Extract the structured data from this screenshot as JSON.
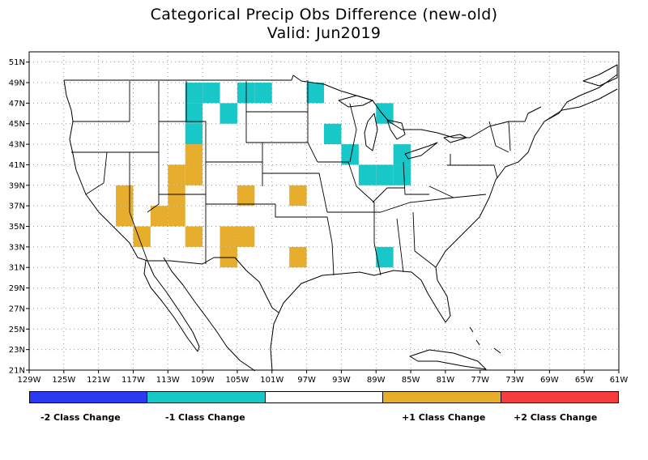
{
  "title": {
    "line1": "Categorical Precip Obs Difference (new-old)",
    "line2": "Valid: Jun2019"
  },
  "lat_ticks": [
    "51N",
    "49N",
    "47N",
    "45N",
    "43N",
    "41N",
    "39N",
    "37N",
    "35N",
    "33N",
    "31N",
    "29N",
    "27N",
    "25N",
    "23N",
    "21N"
  ],
  "lat_values": [
    51,
    49,
    47,
    45,
    43,
    41,
    39,
    37,
    35,
    33,
    31,
    29,
    27,
    25,
    23,
    21
  ],
  "lon_ticks": [
    "129W",
    "125W",
    "121W",
    "117W",
    "113W",
    "109W",
    "105W",
    "101W",
    "97W",
    "93W",
    "89W",
    "85W",
    "81W",
    "77W",
    "73W",
    "69W",
    "65W",
    "61W"
  ],
  "lon_values": [
    -129,
    -125,
    -121,
    -117,
    -113,
    -109,
    -105,
    -101,
    -97,
    -93,
    -89,
    -85,
    -81,
    -77,
    -73,
    -69,
    -65,
    -61
  ],
  "extent": {
    "lon_min": -129,
    "lon_max": -61,
    "lat_min": 21,
    "lat_max": 52
  },
  "colors": {
    "minus2": "#2a3af2",
    "minus1": "#18c7c7",
    "zero": "#ffffff",
    "plus1": "#e7ad2c",
    "plus2": "#f63c3c",
    "land_line": "#000000",
    "grid": "#9a9a9a"
  },
  "legend": [
    {
      "key": "minus2",
      "label": "-2 Class Change"
    },
    {
      "key": "minus1",
      "label": "-1 Class Change"
    },
    {
      "key": "zero",
      "label": ""
    },
    {
      "key": "plus1",
      "label": "+1 Class Change"
    },
    {
      "key": "plus2",
      "label": "+2 Class Change"
    }
  ],
  "cells_minus1": [
    [
      -110,
      48
    ],
    [
      -108,
      48
    ],
    [
      -104,
      48
    ],
    [
      -102,
      48
    ],
    [
      -96,
      48
    ],
    [
      -110,
      46
    ],
    [
      -106,
      46
    ],
    [
      -88,
      46
    ],
    [
      -110,
      44
    ],
    [
      -94,
      44
    ],
    [
      -92,
      42
    ],
    [
      -86,
      42
    ],
    [
      -90,
      40
    ],
    [
      -88,
      40
    ],
    [
      -86,
      40
    ],
    [
      -88,
      32
    ]
  ],
  "cells_plus1": [
    [
      -110,
      42
    ],
    [
      -112,
      40
    ],
    [
      -110,
      40
    ],
    [
      -118,
      38
    ],
    [
      -112,
      38
    ],
    [
      -104,
      38
    ],
    [
      -98,
      38
    ],
    [
      -118,
      36
    ],
    [
      -114,
      36
    ],
    [
      -112,
      36
    ],
    [
      -116,
      34
    ],
    [
      -110,
      34
    ],
    [
      -106,
      34
    ],
    [
      -104,
      34
    ],
    [
      -106,
      32
    ],
    [
      -98,
      32
    ]
  ]
}
